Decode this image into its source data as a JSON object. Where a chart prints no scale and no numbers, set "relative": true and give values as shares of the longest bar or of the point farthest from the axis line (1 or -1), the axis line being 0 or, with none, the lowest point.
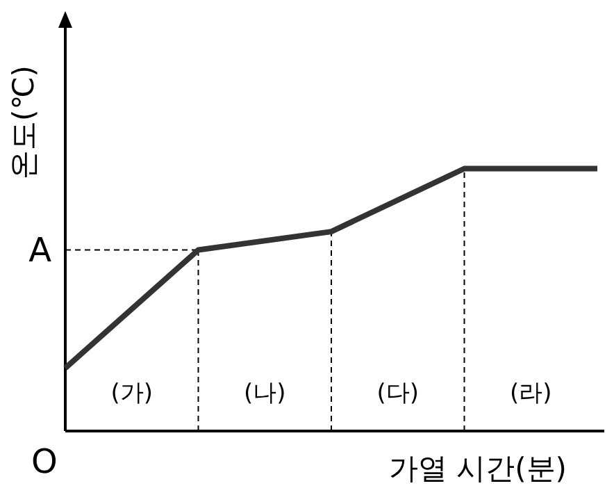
{
  "chart_data": {
    "type": "line",
    "relative": true,
    "ylabel": "온도(℃)",
    "xlabel": "가열 시간(분)",
    "categories": [
      null,
      null,
      null,
      null,
      null
    ],
    "series": [
      {
        "color": "#333333",
        "values": [
          0.24,
          0.69,
          0.76,
          1,
          1
        ]
      }
    ],
    "ref_lines": [
      {
        "axis": "y",
        "value": 0.69,
        "label": "A",
        "line_style": "dashed"
      }
    ],
    "annotations": [
      "(가)",
      "(나)",
      "(다)",
      "(라)",
      "O"
    ],
    "marker": "none",
    "line_style": "solid"
  }
}
